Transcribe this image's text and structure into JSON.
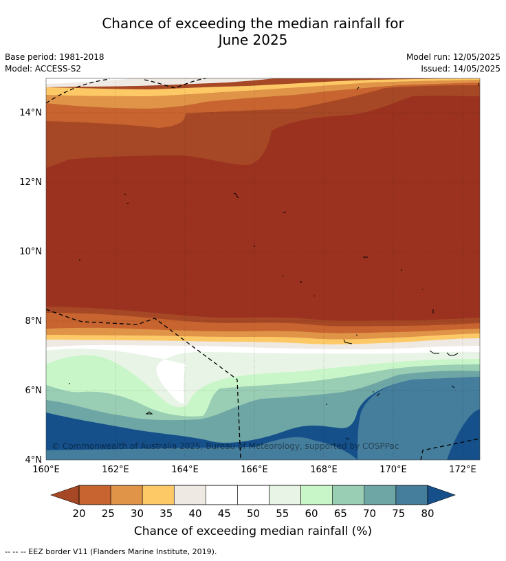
{
  "title": {
    "line1": "Chance of exceeding the median rainfall for",
    "line2": "June 2025"
  },
  "meta": {
    "base_period": "Base period: 1981-2018",
    "model": "Model: ACCESS-S2",
    "model_run": "Model run: 12/05/2025",
    "issued": "Issued: 14/05/2025"
  },
  "map": {
    "lon_range": [
      160,
      172.5
    ],
    "lat_range": [
      4,
      15
    ],
    "x_ticks": [
      "160°E",
      "162°E",
      "164°E",
      "166°E",
      "168°E",
      "170°E",
      "172°E"
    ],
    "y_ticks": [
      "14°N",
      "12°N",
      "10°N",
      "8°N",
      "6°N",
      "4°N"
    ],
    "copyright": "© Commonwealth of Australia 2025, Bureau of Meteorology, supported by COSPPac",
    "grid": true
  },
  "colorbar": {
    "title": "Chance of exceeding median rainfall (%)",
    "labels": [
      "20",
      "25",
      "30",
      "35",
      "40",
      "45",
      "50",
      "55",
      "60",
      "65",
      "70",
      "75",
      "80"
    ],
    "colors": [
      "#c8642f",
      "#e09448",
      "#fdc966",
      "#efe9e4",
      "#ffffff",
      "#ffffff",
      "#e8f4e6",
      "#c9f6c8",
      "#99cdb4",
      "#6ea6a5",
      "#457d9c"
    ],
    "under_color": "#a64825",
    "over_color": "#15508a"
  },
  "palette": {
    "darkest_dry": "#9b3220",
    "dry_2": "#a64825",
    "dry_3": "#c8642f",
    "dry_4": "#e09448",
    "dry_5": "#fdc966",
    "neutral": "#efe9e4",
    "wet_1": "#e8f4e6",
    "wet_2": "#c9f6c8",
    "wet_3": "#99cdb4",
    "wet_4": "#6ea6a5",
    "wet_5": "#457d9c",
    "wet_6": "#15508a"
  },
  "footer": {
    "legend_text": "--  --  -- EEZ border V11 (Flanders Marine Institute, 2019)."
  }
}
